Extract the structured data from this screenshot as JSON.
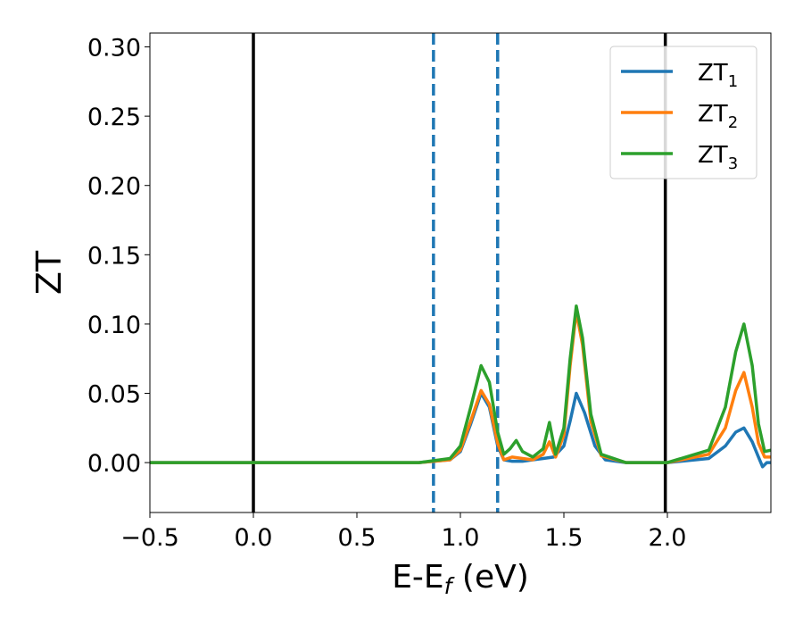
{
  "chart_data": {
    "type": "line",
    "title": "",
    "xlabel": {
      "main": "E-E",
      "subscript": "f",
      "suffix": " (eV)"
    },
    "ylabel": "ZT",
    "xlim": [
      -0.5,
      2.5
    ],
    "ylim": [
      -0.036,
      0.31
    ],
    "x_ticks": [
      -0.5,
      0.0,
      0.5,
      1.0,
      1.5,
      2.0
    ],
    "x_tick_labels": [
      "−0.5",
      "0.0",
      "0.5",
      "1.0",
      "1.5",
      "2.0"
    ],
    "y_ticks": [
      0.0,
      0.05,
      0.1,
      0.15,
      0.2,
      0.25,
      0.3
    ],
    "y_tick_labels": [
      "0.00",
      "0.05",
      "0.10",
      "0.15",
      "0.20",
      "0.25",
      "0.30"
    ],
    "grid": false,
    "legend_position": "top-right",
    "vertical_lines": [
      {
        "x": 0.0,
        "style": "solid",
        "color": "#000000"
      },
      {
        "x": 0.87,
        "style": "dashed",
        "color": "#1f77b4"
      },
      {
        "x": 1.18,
        "style": "dashed",
        "color": "#1f77b4"
      },
      {
        "x": 1.99,
        "style": "solid",
        "color": "#000000"
      }
    ],
    "series": [
      {
        "name": "ZT",
        "name_subscript": "1",
        "color": "#1f77b4",
        "points": [
          [
            -0.5,
            0
          ],
          [
            0.8,
            0
          ],
          [
            0.95,
            0.002
          ],
          [
            1.0,
            0.008
          ],
          [
            1.05,
            0.028
          ],
          [
            1.1,
            0.05
          ],
          [
            1.14,
            0.04
          ],
          [
            1.18,
            0.012
          ],
          [
            1.21,
            0.002
          ],
          [
            1.25,
            0.001
          ],
          [
            1.3,
            0.001
          ],
          [
            1.35,
            0.002
          ],
          [
            1.4,
            0.003
          ],
          [
            1.45,
            0.004
          ],
          [
            1.5,
            0.012
          ],
          [
            1.53,
            0.03
          ],
          [
            1.56,
            0.05
          ],
          [
            1.6,
            0.036
          ],
          [
            1.65,
            0.012
          ],
          [
            1.7,
            0.002
          ],
          [
            1.8,
            0.0
          ],
          [
            2.0,
            0.0
          ],
          [
            2.2,
            0.003
          ],
          [
            2.28,
            0.012
          ],
          [
            2.33,
            0.022
          ],
          [
            2.37,
            0.025
          ],
          [
            2.41,
            0.015
          ],
          [
            2.44,
            0.004
          ],
          [
            2.46,
            -0.003
          ],
          [
            2.48,
            0.0
          ],
          [
            2.5,
            0.0
          ]
        ]
      },
      {
        "name": "ZT",
        "name_subscript": "2",
        "color": "#ff7f0e",
        "points": [
          [
            -0.5,
            0
          ],
          [
            0.8,
            0
          ],
          [
            0.95,
            0.002
          ],
          [
            1.0,
            0.009
          ],
          [
            1.05,
            0.03
          ],
          [
            1.1,
            0.052
          ],
          [
            1.14,
            0.042
          ],
          [
            1.18,
            0.014
          ],
          [
            1.21,
            0.002
          ],
          [
            1.25,
            0.004
          ],
          [
            1.3,
            0.003
          ],
          [
            1.35,
            0.002
          ],
          [
            1.4,
            0.006
          ],
          [
            1.43,
            0.015
          ],
          [
            1.46,
            0.004
          ],
          [
            1.5,
            0.02
          ],
          [
            1.53,
            0.07
          ],
          [
            1.56,
            0.109
          ],
          [
            1.59,
            0.085
          ],
          [
            1.63,
            0.03
          ],
          [
            1.68,
            0.005
          ],
          [
            1.8,
            0.0
          ],
          [
            2.0,
            0.0
          ],
          [
            2.2,
            0.006
          ],
          [
            2.28,
            0.025
          ],
          [
            2.33,
            0.052
          ],
          [
            2.37,
            0.065
          ],
          [
            2.41,
            0.04
          ],
          [
            2.44,
            0.014
          ],
          [
            2.47,
            0.004
          ],
          [
            2.5,
            0.004
          ]
        ]
      },
      {
        "name": "ZT",
        "name_subscript": "3",
        "color": "#2ca02c",
        "points": [
          [
            -0.5,
            0
          ],
          [
            0.8,
            0
          ],
          [
            0.95,
            0.003
          ],
          [
            1.0,
            0.012
          ],
          [
            1.05,
            0.04
          ],
          [
            1.1,
            0.07
          ],
          [
            1.14,
            0.058
          ],
          [
            1.18,
            0.022
          ],
          [
            1.21,
            0.006
          ],
          [
            1.24,
            0.01
          ],
          [
            1.27,
            0.016
          ],
          [
            1.3,
            0.008
          ],
          [
            1.35,
            0.004
          ],
          [
            1.4,
            0.01
          ],
          [
            1.43,
            0.029
          ],
          [
            1.46,
            0.006
          ],
          [
            1.5,
            0.025
          ],
          [
            1.53,
            0.075
          ],
          [
            1.56,
            0.113
          ],
          [
            1.59,
            0.09
          ],
          [
            1.63,
            0.035
          ],
          [
            1.68,
            0.006
          ],
          [
            1.8,
            0.0
          ],
          [
            2.0,
            0.0
          ],
          [
            2.2,
            0.009
          ],
          [
            2.28,
            0.04
          ],
          [
            2.33,
            0.08
          ],
          [
            2.37,
            0.1
          ],
          [
            2.41,
            0.07
          ],
          [
            2.44,
            0.028
          ],
          [
            2.47,
            0.008
          ],
          [
            2.5,
            0.009
          ]
        ]
      }
    ]
  }
}
